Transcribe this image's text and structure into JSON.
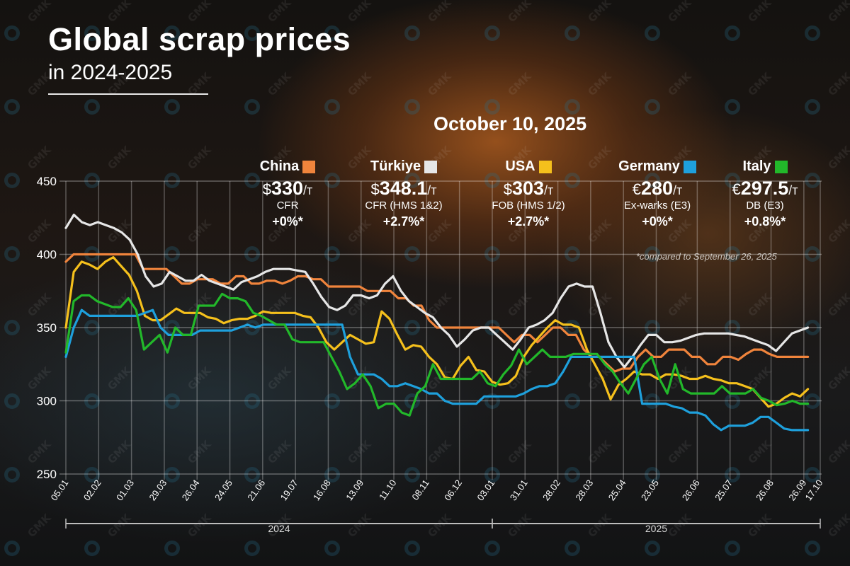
{
  "header": {
    "title": "Global scrap prices",
    "subtitle": "in 2024-2025",
    "date": "October 10, 2025",
    "footnote": "*compared to September 26, 2025",
    "watermark": "GMK"
  },
  "cards": [
    {
      "country": "China",
      "color": "#f0843c",
      "currency": "$",
      "price": "330",
      "unit": "/т",
      "basis": "CFR",
      "change": "+0%*"
    },
    {
      "country": "Türkiye",
      "color": "#e6e6e6",
      "currency": "$",
      "price": "348.1",
      "unit": "/т",
      "basis": "CFR (HMS 1&2)",
      "change": "+2.7%*"
    },
    {
      "country": "USA",
      "color": "#f5c01c",
      "currency": "$",
      "price": "303",
      "unit": "/т",
      "basis": "FOB (HMS 1/2)",
      "change": "+2.7%*"
    },
    {
      "country": "Germany",
      "color": "#1ea0dc",
      "currency": "€",
      "price": "280",
      "unit": "/т",
      "basis": "Ex-warks (E3)",
      "change": "+0%*"
    },
    {
      "country": "Italy",
      "color": "#22b82a",
      "currency": "€",
      "price": "297.5",
      "unit": "/т",
      "basis": "DB (E3)",
      "change": "+0.8%*"
    }
  ],
  "chart_data": {
    "type": "line",
    "title": "Global scrap prices in 2024-2025",
    "xlabel": "",
    "ylabel": "",
    "ylim": [
      250,
      450
    ],
    "yticks": [
      450,
      400,
      350,
      300,
      250
    ],
    "grid": true,
    "x_unit": "weeks since 05.01.2024",
    "x_range": [
      0,
      92
    ],
    "xtick_labels": [
      "05.01",
      "02.02",
      "01.03",
      "29.03",
      "26.04",
      "24.05",
      "21.06",
      "19.07",
      "16.08",
      "13.09",
      "11.10",
      "08.11",
      "06.12",
      "03.01",
      "31.01",
      "28.02",
      "28.03",
      "25.04",
      "23.05",
      "26.06",
      "25.07",
      "26.08",
      "26.09",
      "17.10"
    ],
    "xtick_weeks": [
      0,
      4,
      8,
      12,
      16,
      20,
      24,
      28,
      32,
      36,
      40,
      44,
      48,
      52,
      56,
      60,
      64,
      68,
      72,
      77,
      81,
      86,
      90,
      92
    ],
    "year_groups": [
      {
        "label": "2024",
        "start_week": 0,
        "end_week": 52
      },
      {
        "label": "2025",
        "start_week": 52,
        "end_week": 92
      }
    ],
    "series": [
      {
        "name": "China",
        "color": "#f0843c",
        "values": [
          395,
          400,
          400,
          400,
          400,
          400,
          400,
          400,
          400,
          400,
          390,
          390,
          390,
          390,
          385,
          380,
          380,
          383,
          383,
          383,
          380,
          380,
          385,
          385,
          380,
          380,
          382,
          382,
          380,
          382,
          385,
          385,
          383,
          383,
          378,
          378,
          378,
          378,
          378,
          375,
          375,
          375,
          375,
          370,
          370,
          365,
          365,
          355,
          350,
          350,
          350,
          350,
          350,
          350,
          350,
          350,
          350,
          345,
          340,
          345,
          345,
          340,
          345,
          350,
          350,
          345,
          345,
          335,
          330,
          330,
          325,
          320,
          322,
          322,
          330,
          335,
          330,
          330,
          335,
          335,
          335,
          330,
          330,
          325,
          325,
          330,
          330,
          328,
          332,
          335,
          335,
          332,
          330,
          330,
          330,
          330,
          330
        ]
      },
      {
        "name": "Türkiye",
        "color": "#e6e6e6",
        "values": [
          418,
          427,
          422,
          420,
          422,
          420,
          418,
          415,
          410,
          400,
          385,
          378,
          380,
          388,
          385,
          382,
          382,
          386,
          382,
          380,
          378,
          376,
          381,
          383,
          385,
          388,
          390,
          390,
          390,
          389,
          388,
          380,
          371,
          364,
          362,
          365,
          372,
          372,
          370,
          372,
          380,
          385,
          375,
          368,
          364,
          360,
          357,
          350,
          345,
          337,
          342,
          348,
          350,
          350,
          345,
          340,
          335,
          342,
          350,
          352,
          355,
          360,
          370,
          378,
          380,
          378,
          378,
          360,
          340,
          330,
          323,
          330,
          338,
          345,
          345,
          340,
          340,
          341,
          343,
          345,
          346,
          346,
          346,
          346,
          345,
          344,
          342,
          340,
          338,
          334,
          340,
          346,
          348,
          350
        ]
      },
      {
        "name": "USA",
        "color": "#f5c01c",
        "values": [
          350,
          388,
          395,
          393,
          390,
          395,
          398,
          392,
          386,
          375,
          358,
          355,
          355,
          359,
          363,
          360,
          360,
          360,
          357,
          356,
          353,
          355,
          356,
          356,
          358,
          361,
          360,
          360,
          360,
          360,
          358,
          357,
          350,
          340,
          335,
          340,
          345,
          342,
          339,
          340,
          361,
          356,
          345,
          335,
          338,
          337,
          330,
          325,
          316,
          315,
          324,
          330,
          321,
          320,
          313,
          311,
          312,
          317,
          330,
          338,
          344,
          350,
          355,
          352,
          352,
          350,
          335,
          325,
          315,
          301,
          311,
          315,
          320,
          318,
          318,
          315,
          318,
          318,
          317,
          315,
          315,
          317,
          315,
          314,
          312,
          312,
          310,
          308,
          302,
          296,
          298,
          302,
          305,
          303,
          308
        ]
      },
      {
        "name": "Germany",
        "color": "#1ea0dc",
        "values": [
          330,
          350,
          362,
          358,
          358,
          358,
          358,
          358,
          358,
          358,
          360,
          362,
          350,
          345,
          345,
          345,
          345,
          348,
          348,
          348,
          348,
          348,
          350,
          352,
          350,
          352,
          352,
          352,
          352,
          352,
          352,
          352,
          352,
          352,
          352,
          352,
          330,
          318,
          318,
          318,
          315,
          310,
          310,
          312,
          310,
          308,
          305,
          305,
          300,
          298,
          298,
          298,
          298,
          303,
          303,
          303,
          303,
          303,
          305,
          308,
          310,
          310,
          312,
          320,
          330,
          330,
          330,
          330,
          330,
          330,
          330,
          330,
          330,
          298,
          298,
          298,
          298,
          296,
          295,
          292,
          292,
          290,
          284,
          280,
          283,
          283,
          283,
          285,
          289,
          289,
          285,
          281,
          280,
          280,
          280
        ]
      },
      {
        "name": "Italy",
        "color": "#22b82a",
        "values": [
          333,
          368,
          372,
          372,
          368,
          366,
          364,
          364,
          370,
          362,
          335,
          340,
          345,
          333,
          350,
          345,
          345,
          365,
          365,
          365,
          373,
          370,
          370,
          368,
          360,
          358,
          355,
          352,
          352,
          342,
          340,
          340,
          340,
          340,
          330,
          320,
          308,
          312,
          318,
          310,
          295,
          298,
          298,
          292,
          290,
          305,
          310,
          325,
          315,
          315,
          315,
          315,
          315,
          320,
          312,
          310,
          318,
          324,
          335,
          325,
          330,
          335,
          330,
          330,
          330,
          332,
          332,
          332,
          332,
          325,
          320,
          312,
          305,
          315,
          325,
          330,
          315,
          305,
          325,
          308,
          305,
          305,
          305,
          305,
          310,
          305,
          305,
          305,
          308,
          302,
          300,
          297,
          298,
          300,
          298,
          298
        ]
      }
    ]
  }
}
